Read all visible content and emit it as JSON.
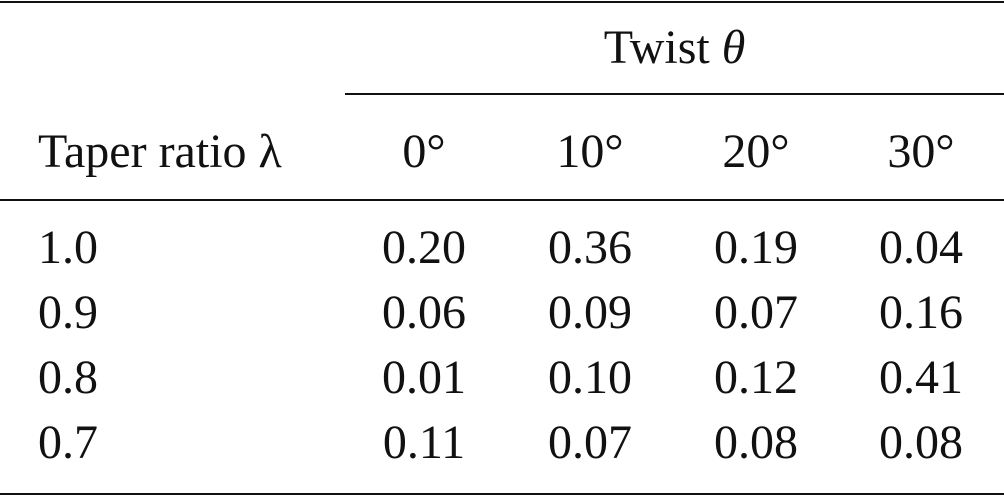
{
  "table": {
    "group": {
      "label": "Twist",
      "symbol": "θ"
    },
    "row_header": "Taper ratio λ",
    "columns": [
      "0°",
      "10°",
      "20°",
      "30°"
    ],
    "rows": [
      [
        "1.0",
        "0.20",
        "0.36",
        "0.19",
        "0.04"
      ],
      [
        "0.9",
        "0.06",
        "0.09",
        "0.07",
        "0.16"
      ],
      [
        "0.8",
        "0.01",
        "0.10",
        "0.12",
        "0.41"
      ],
      [
        "0.7",
        "0.11",
        "0.07",
        "0.08",
        "0.08"
      ]
    ]
  }
}
